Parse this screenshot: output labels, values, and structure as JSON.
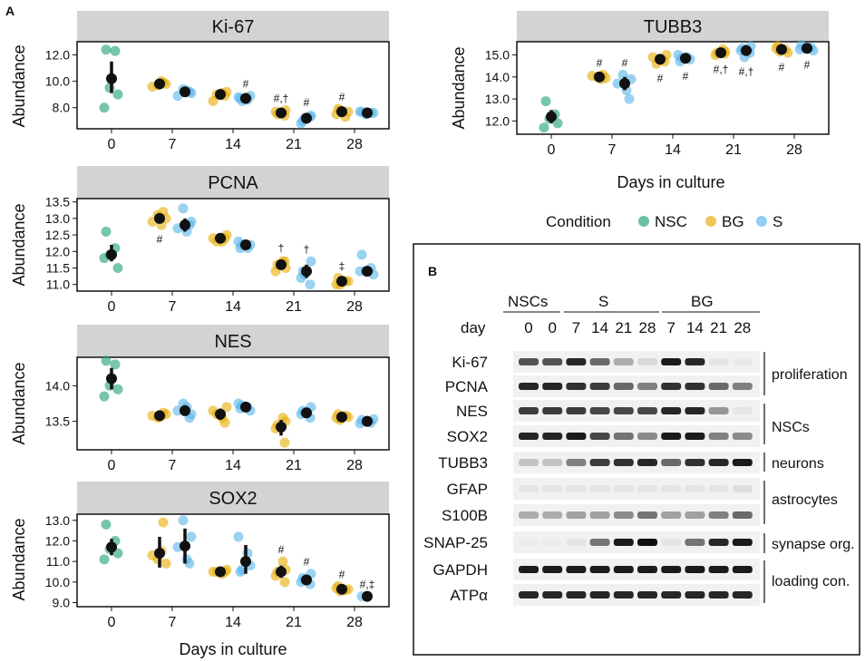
{
  "panel_labels": {
    "a": "A",
    "b": "B"
  },
  "shared": {
    "y_label": "Abundance",
    "x_label": "Days in culture",
    "colors": {
      "NSC": "#1b9e77",
      "BG": "#e6ab02",
      "S": "#56b4e9",
      "mean": "#111111",
      "strip": "#d3d3d3"
    }
  },
  "legend": {
    "title": "Condition",
    "entries": [
      {
        "key": "NSC",
        "label": "NSC",
        "color": "#1b9e77"
      },
      {
        "key": "BG",
        "label": "BG",
        "color": "#e6ab02"
      },
      {
        "key": "S",
        "label": "S",
        "color": "#56b4e9"
      }
    ]
  },
  "chart_data": [
    {
      "type": "scatter",
      "title": "Ki-67",
      "xlabel": "",
      "ylabel": "Abundance",
      "x_ticks": [
        "0",
        "7",
        "14",
        "21",
        "28"
      ],
      "y_ticks": [
        "12.0",
        "10.0",
        "8.0"
      ],
      "y_tick_values": [
        12,
        10,
        8
      ],
      "ylim": [
        6.4,
        13.0
      ],
      "groups": [
        {
          "day": "0",
          "condition": "NSC",
          "mean": 10.2,
          "ci": [
            9.1,
            11.5
          ],
          "points": [
            12.4,
            12.3,
            9.5,
            9.0,
            8.0
          ]
        },
        {
          "day": "7",
          "condition": "BG",
          "mean": 9.8,
          "ci": [
            9.6,
            10.0
          ],
          "points": [
            9.9,
            9.7,
            9.8,
            9.6,
            10.0
          ]
        },
        {
          "day": "7",
          "condition": "S",
          "mean": 9.2,
          "ci": [
            9.0,
            9.4
          ],
          "points": [
            9.4,
            9.1,
            8.9,
            9.3,
            9.2
          ]
        },
        {
          "day": "14",
          "condition": "BG",
          "mean": 9.0,
          "ci": [
            8.7,
            9.3
          ],
          "points": [
            9.2,
            8.5,
            9.1,
            8.9,
            9.0
          ]
        },
        {
          "day": "14",
          "condition": "S",
          "mean": 8.7,
          "ci": [
            8.5,
            8.9
          ],
          "points": [
            8.8,
            8.6,
            8.9,
            8.5,
            8.7
          ],
          "annotation": "#"
        },
        {
          "day": "21",
          "condition": "BG",
          "mean": 7.6,
          "ci": [
            7.4,
            7.8
          ],
          "points": [
            7.6,
            7.8,
            7.5,
            7.7,
            7.4
          ],
          "annotation": "#,†"
        },
        {
          "day": "21",
          "condition": "S",
          "mean": 7.2,
          "ci": [
            6.9,
            7.5
          ],
          "points": [
            7.4,
            7.0,
            6.8,
            7.3,
            7.2
          ],
          "annotation": "#"
        },
        {
          "day": "28",
          "condition": "BG",
          "mean": 7.7,
          "ci": [
            7.5,
            7.9
          ],
          "points": [
            7.9,
            7.5,
            7.3,
            7.8,
            7.7
          ],
          "annotation": "#"
        },
        {
          "day": "28",
          "condition": "S",
          "mean": 7.6,
          "ci": [
            7.5,
            7.7
          ],
          "points": [
            7.7,
            7.6,
            7.5,
            7.6,
            7.7
          ]
        }
      ]
    },
    {
      "type": "scatter",
      "title": "PCNA",
      "xlabel": "",
      "ylabel": "Abundance",
      "x_ticks": [
        "0",
        "7",
        "14",
        "21",
        "28"
      ],
      "y_ticks": [
        "13.5",
        "13.0",
        "12.5",
        "12.0",
        "11.5",
        "11.0"
      ],
      "y_tick_values": [
        13.5,
        13.0,
        12.5,
        12.0,
        11.5,
        11.0
      ],
      "ylim": [
        10.8,
        13.6
      ],
      "groups": [
        {
          "day": "0",
          "condition": "NSC",
          "mean": 11.9,
          "ci": [
            11.7,
            12.2
          ],
          "points": [
            12.6,
            12.1,
            11.9,
            11.5,
            11.8
          ]
        },
        {
          "day": "7",
          "condition": "BG",
          "mean": 13.0,
          "ci": [
            12.85,
            13.15
          ],
          "points": [
            13.2,
            13.1,
            13.0,
            12.9,
            12.8
          ],
          "annotation": "#"
        },
        {
          "day": "7",
          "condition": "S",
          "mean": 12.8,
          "ci": [
            12.6,
            13.0
          ],
          "points": [
            13.3,
            12.9,
            12.7,
            12.6,
            12.8
          ]
        },
        {
          "day": "14",
          "condition": "BG",
          "mean": 12.4,
          "ci": [
            12.3,
            12.5
          ],
          "points": [
            12.5,
            12.4,
            12.3,
            12.4,
            12.3
          ]
        },
        {
          "day": "14",
          "condition": "S",
          "mean": 12.2,
          "ci": [
            12.1,
            12.3
          ],
          "points": [
            12.3,
            12.1,
            12.2,
            12.2,
            12.1
          ]
        },
        {
          "day": "21",
          "condition": "BG",
          "mean": 11.6,
          "ci": [
            11.45,
            11.75
          ],
          "points": [
            11.7,
            11.5,
            11.6,
            11.4,
            11.7
          ],
          "annotation": "†"
        },
        {
          "day": "21",
          "condition": "S",
          "mean": 11.4,
          "ci": [
            11.2,
            11.6
          ],
          "points": [
            11.7,
            11.4,
            11.2,
            11.0,
            11.3
          ],
          "annotation": "†"
        },
        {
          "day": "28",
          "condition": "BG",
          "mean": 11.1,
          "ci": [
            11.0,
            11.2
          ],
          "points": [
            11.2,
            11.0,
            11.1,
            11.0,
            11.1
          ],
          "annotation": "‡"
        },
        {
          "day": "28",
          "condition": "S",
          "mean": 11.4,
          "ci": [
            11.3,
            11.55
          ],
          "points": [
            11.9,
            11.5,
            11.4,
            11.3,
            11.4
          ]
        }
      ]
    },
    {
      "type": "scatter",
      "title": "NES",
      "xlabel": "",
      "ylabel": "Abundance",
      "x_ticks": [
        "0",
        "7",
        "14",
        "21",
        "28"
      ],
      "y_ticks": [
        "14.0",
        "13.5"
      ],
      "y_tick_values": [
        14.0,
        13.5
      ],
      "ylim": [
        13.1,
        14.4
      ],
      "groups": [
        {
          "day": "0",
          "condition": "NSC",
          "mean": 14.1,
          "ci": [
            13.95,
            14.25
          ],
          "points": [
            14.35,
            14.3,
            14.0,
            13.95,
            13.85
          ]
        },
        {
          "day": "7",
          "condition": "BG",
          "mean": 13.58,
          "ci": [
            13.53,
            13.63
          ],
          "points": [
            13.62,
            13.55,
            13.6,
            13.58,
            13.57
          ]
        },
        {
          "day": "7",
          "condition": "S",
          "mean": 13.65,
          "ci": [
            13.58,
            13.72
          ],
          "points": [
            13.75,
            13.6,
            13.65,
            13.7,
            13.55
          ]
        },
        {
          "day": "14",
          "condition": "BG",
          "mean": 13.6,
          "ci": [
            13.52,
            13.68
          ],
          "points": [
            13.7,
            13.65,
            13.55,
            13.48,
            13.6
          ]
        },
        {
          "day": "14",
          "condition": "S",
          "mean": 13.7,
          "ci": [
            13.64,
            13.76
          ],
          "points": [
            13.75,
            13.7,
            13.65,
            13.72,
            13.68
          ]
        },
        {
          "day": "21",
          "condition": "BG",
          "mean": 13.42,
          "ci": [
            13.3,
            13.52
          ],
          "points": [
            13.55,
            13.5,
            13.45,
            13.4,
            13.2
          ]
        },
        {
          "day": "21",
          "condition": "S",
          "mean": 13.62,
          "ci": [
            13.56,
            13.68
          ],
          "points": [
            13.7,
            13.65,
            13.6,
            13.55,
            13.62
          ]
        },
        {
          "day": "28",
          "condition": "BG",
          "mean": 13.56,
          "ci": [
            13.52,
            13.6
          ],
          "points": [
            13.6,
            13.55,
            13.58,
            13.52,
            13.56
          ]
        },
        {
          "day": "28",
          "condition": "S",
          "mean": 13.5,
          "ci": [
            13.47,
            13.53
          ],
          "points": [
            13.52,
            13.48,
            13.5,
            13.53,
            13.47
          ]
        }
      ]
    },
    {
      "type": "scatter",
      "title": "SOX2",
      "xlabel": "Days in culture",
      "ylabel": "Abundance",
      "x_ticks": [
        "0",
        "7",
        "14",
        "21",
        "28"
      ],
      "y_ticks": [
        "13.0",
        "12.0",
        "11.0",
        "10.0",
        "9.0"
      ],
      "y_tick_values": [
        13,
        12,
        11,
        10,
        9
      ],
      "ylim": [
        8.8,
        13.3
      ],
      "groups": [
        {
          "day": "0",
          "condition": "NSC",
          "mean": 11.7,
          "ci": [
            11.3,
            12.1
          ],
          "points": [
            12.8,
            12.0,
            11.6,
            11.4,
            11.1
          ]
        },
        {
          "day": "7",
          "condition": "BG",
          "mean": 11.4,
          "ci": [
            10.7,
            12.2
          ],
          "points": [
            12.9,
            11.1,
            10.9,
            11.3,
            11.5
          ]
        },
        {
          "day": "7",
          "condition": "S",
          "mean": 11.75,
          "ci": [
            10.9,
            12.6
          ],
          "points": [
            13.0,
            12.2,
            11.7,
            11.1,
            10.9
          ]
        },
        {
          "day": "14",
          "condition": "BG",
          "mean": 10.5,
          "ci": [
            10.4,
            10.6
          ],
          "points": [
            10.6,
            10.5,
            10.4,
            10.5,
            10.5
          ]
        },
        {
          "day": "14",
          "condition": "S",
          "mean": 11.0,
          "ci": [
            10.4,
            11.8
          ],
          "points": [
            12.2,
            11.4,
            10.8,
            10.6,
            10.5
          ]
        },
        {
          "day": "21",
          "condition": "BG",
          "mean": 10.5,
          "ci": [
            10.2,
            10.8
          ],
          "points": [
            11.0,
            10.6,
            10.5,
            10.3,
            10.0
          ],
          "annotation": "#"
        },
        {
          "day": "21",
          "condition": "S",
          "mean": 10.1,
          "ci": [
            9.9,
            10.3
          ],
          "points": [
            10.4,
            10.2,
            10.0,
            9.9,
            10.1
          ],
          "annotation": "#"
        },
        {
          "day": "28",
          "condition": "BG",
          "mean": 9.65,
          "ci": [
            9.55,
            9.75
          ],
          "points": [
            9.8,
            9.7,
            9.6,
            9.55,
            9.65
          ],
          "annotation": "#"
        },
        {
          "day": "28",
          "condition": "S",
          "mean": 9.3,
          "ci": [
            9.3,
            9.3
          ],
          "points": [
            9.3
          ],
          "annotation": "#,‡"
        }
      ]
    },
    {
      "type": "scatter",
      "title": "TUBB3",
      "xlabel": "Days in culture",
      "ylabel": "Abundance",
      "x_ticks": [
        "0",
        "7",
        "14",
        "21",
        "28"
      ],
      "y_ticks": [
        "15.0",
        "14.0",
        "13.0",
        "12.0"
      ],
      "y_tick_values": [
        15,
        14,
        13,
        12
      ],
      "ylim": [
        11.4,
        15.6
      ],
      "groups": [
        {
          "day": "0",
          "condition": "NSC",
          "mean": 12.2,
          "ci": [
            11.9,
            12.5
          ],
          "points": [
            12.9,
            12.3,
            12.1,
            11.9,
            11.7
          ]
        },
        {
          "day": "7",
          "condition": "BG",
          "mean": 14.0,
          "ci": [
            13.9,
            14.1
          ],
          "points": [
            14.1,
            14.0,
            13.95,
            14.05,
            13.9
          ],
          "annotation": "#"
        },
        {
          "day": "7",
          "condition": "S",
          "mean": 13.7,
          "ci": [
            13.4,
            14.0
          ],
          "points": [
            14.1,
            13.9,
            13.7,
            13.4,
            13.0
          ],
          "annotation": "#"
        },
        {
          "day": "14",
          "condition": "BG",
          "mean": 14.8,
          "ci": [
            14.65,
            14.95
          ],
          "points": [
            15.0,
            14.9,
            14.8,
            14.7,
            14.6
          ],
          "annotation": "#"
        },
        {
          "day": "14",
          "condition": "S",
          "mean": 14.85,
          "ci": [
            14.75,
            14.95
          ],
          "points": [
            15.0,
            14.9,
            14.8,
            14.85,
            14.7
          ],
          "annotation": "#"
        },
        {
          "day": "21",
          "condition": "BG",
          "mean": 15.1,
          "ci": [
            15.0,
            15.2
          ],
          "points": [
            15.25,
            15.15,
            15.1,
            15.0,
            15.05
          ],
          "annotation": "#,†"
        },
        {
          "day": "21",
          "condition": "S",
          "mean": 15.2,
          "ci": [
            15.05,
            15.35
          ],
          "points": [
            15.4,
            15.3,
            15.2,
            15.1,
            14.9
          ],
          "annotation": "#,†"
        },
        {
          "day": "28",
          "condition": "BG",
          "mean": 15.25,
          "ci": [
            15.15,
            15.35
          ],
          "points": [
            15.4,
            15.3,
            15.25,
            15.15,
            15.1
          ],
          "annotation": "#"
        },
        {
          "day": "28",
          "condition": "S",
          "mean": 15.3,
          "ci": [
            15.2,
            15.4
          ],
          "points": [
            15.45,
            15.35,
            15.3,
            15.2,
            15.25
          ],
          "annotation": "#"
        }
      ]
    }
  ],
  "western_blot": {
    "group_labels": [
      "NSCs",
      "S",
      "BG"
    ],
    "day_label": "day",
    "lanes": [
      {
        "group": "NSCs",
        "day": "0"
      },
      {
        "group": "NSCs",
        "day": "0"
      },
      {
        "group": "S",
        "day": "7"
      },
      {
        "group": "S",
        "day": "14"
      },
      {
        "group": "S",
        "day": "21"
      },
      {
        "group": "S",
        "day": "28"
      },
      {
        "group": "BG",
        "day": "7"
      },
      {
        "group": "BG",
        "day": "14"
      },
      {
        "group": "BG",
        "day": "21"
      },
      {
        "group": "BG",
        "day": "28"
      }
    ],
    "bands": [
      {
        "name": "Ki-67",
        "intensities": [
          0.7,
          0.7,
          0.9,
          0.6,
          0.3,
          0.1,
          0.95,
          0.9,
          0.05,
          0.03
        ]
      },
      {
        "name": "PCNA",
        "intensities": [
          0.9,
          0.9,
          0.85,
          0.8,
          0.6,
          0.5,
          0.85,
          0.85,
          0.6,
          0.5
        ]
      },
      {
        "name": "NES",
        "intensities": [
          0.8,
          0.8,
          0.8,
          0.75,
          0.75,
          0.75,
          0.9,
          0.9,
          0.4,
          0.05
        ]
      },
      {
        "name": "SOX2",
        "intensities": [
          0.9,
          0.9,
          0.95,
          0.75,
          0.55,
          0.45,
          0.95,
          0.95,
          0.5,
          0.45
        ]
      },
      {
        "name": "TUBB3",
        "intensities": [
          0.2,
          0.2,
          0.5,
          0.8,
          0.85,
          0.9,
          0.6,
          0.85,
          0.9,
          0.95
        ]
      },
      {
        "name": "GFAP",
        "intensities": [
          0.05,
          0.05,
          0.05,
          0.05,
          0.05,
          0.05,
          0.05,
          0.05,
          0.05,
          0.08
        ]
      },
      {
        "name": "S100B",
        "intensities": [
          0.3,
          0.3,
          0.35,
          0.35,
          0.45,
          0.55,
          0.35,
          0.35,
          0.5,
          0.6
        ]
      },
      {
        "name": "SNAP-25",
        "intensities": [
          0.02,
          0.02,
          0.05,
          0.55,
          0.95,
          1.0,
          0.05,
          0.55,
          0.9,
          0.95
        ]
      },
      {
        "name": "GAPDH",
        "intensities": [
          0.95,
          0.95,
          0.95,
          0.95,
          0.95,
          0.95,
          0.95,
          0.95,
          0.95,
          0.95
        ]
      },
      {
        "name": "ATPα",
        "intensities": [
          0.9,
          0.9,
          0.9,
          0.9,
          0.9,
          0.9,
          0.9,
          0.9,
          0.9,
          0.9
        ]
      }
    ],
    "categories": [
      "proliferation",
      "NSCs",
      "neurons",
      "astrocytes",
      "synapse org.",
      "loading con."
    ]
  }
}
